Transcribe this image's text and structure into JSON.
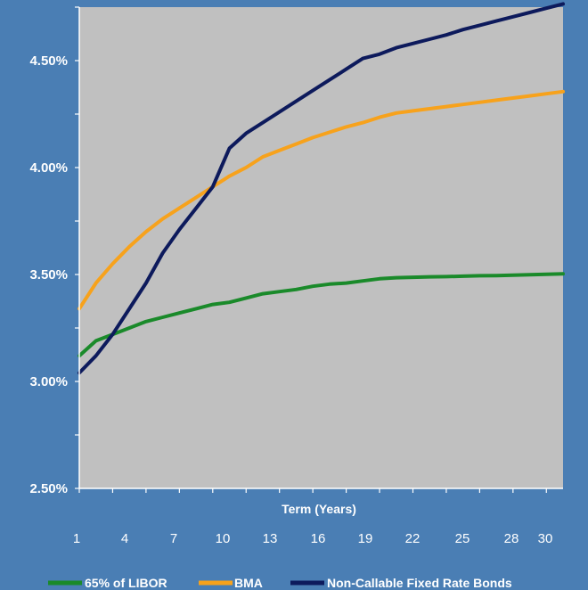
{
  "colors": {
    "background": "#4a7eb4",
    "plot_area": "#c0c0c0"
  },
  "chart_data": {
    "type": "line",
    "title": "",
    "xlabel": "Term (Years)",
    "ylabel": "",
    "x_ticks": [
      1,
      4,
      7,
      10,
      13,
      16,
      19,
      22,
      25,
      28,
      30
    ],
    "y_ticks": [
      "2.50%",
      "3.00%",
      "3.50%",
      "4.00%",
      "4.50%"
    ],
    "xlim": [
      1,
      30
    ],
    "ylim": [
      2.5,
      4.75
    ],
    "grid": false,
    "legend_position": "bottom",
    "series": [
      {
        "name": "65% of LIBOR",
        "color": "#1a8a2a",
        "x": [
          1,
          2,
          3,
          4,
          5,
          6,
          7,
          8,
          9,
          10,
          11,
          12,
          13,
          14,
          15,
          16,
          17,
          18,
          19,
          20,
          21,
          22,
          23,
          24,
          25,
          26,
          27,
          28,
          29,
          30
        ],
        "values": [
          3.12,
          3.19,
          3.22,
          3.25,
          3.28,
          3.3,
          3.32,
          3.34,
          3.36,
          3.37,
          3.39,
          3.41,
          3.42,
          3.43,
          3.445,
          3.455,
          3.46,
          3.47,
          3.48,
          3.485,
          3.487,
          3.489,
          3.49,
          3.492,
          3.494,
          3.495,
          3.497,
          3.499,
          3.501,
          3.503
        ]
      },
      {
        "name": "BMA",
        "color": "#f7a21c",
        "x": [
          1,
          2,
          3,
          4,
          5,
          6,
          7,
          8,
          9,
          10,
          11,
          12,
          13,
          14,
          15,
          16,
          17,
          18,
          19,
          20,
          21,
          22,
          23,
          24,
          25,
          26,
          27,
          28,
          29,
          30
        ],
        "values": [
          3.34,
          3.46,
          3.55,
          3.63,
          3.7,
          3.76,
          3.81,
          3.86,
          3.91,
          3.96,
          4.0,
          4.05,
          4.08,
          4.11,
          4.14,
          4.165,
          4.19,
          4.21,
          4.235,
          4.255,
          4.265,
          4.275,
          4.285,
          4.295,
          4.305,
          4.315,
          4.325,
          4.335,
          4.345,
          4.355
        ]
      },
      {
        "name": "Non-Callable Fixed Rate Bonds",
        "color": "#0d1a5c",
        "x": [
          1,
          2,
          3,
          4,
          5,
          6,
          7,
          8,
          9,
          10,
          11,
          12,
          13,
          14,
          15,
          16,
          17,
          18,
          19,
          20,
          21,
          22,
          23,
          24,
          25,
          26,
          27,
          28,
          29,
          30
        ],
        "values": [
          3.04,
          3.12,
          3.22,
          3.34,
          3.46,
          3.6,
          3.71,
          3.81,
          3.91,
          4.09,
          4.16,
          4.21,
          4.26,
          4.31,
          4.36,
          4.41,
          4.46,
          4.51,
          4.53,
          4.56,
          4.58,
          4.6,
          4.62,
          4.645,
          4.665,
          4.685,
          4.705,
          4.725,
          4.745,
          4.765
        ]
      }
    ]
  }
}
